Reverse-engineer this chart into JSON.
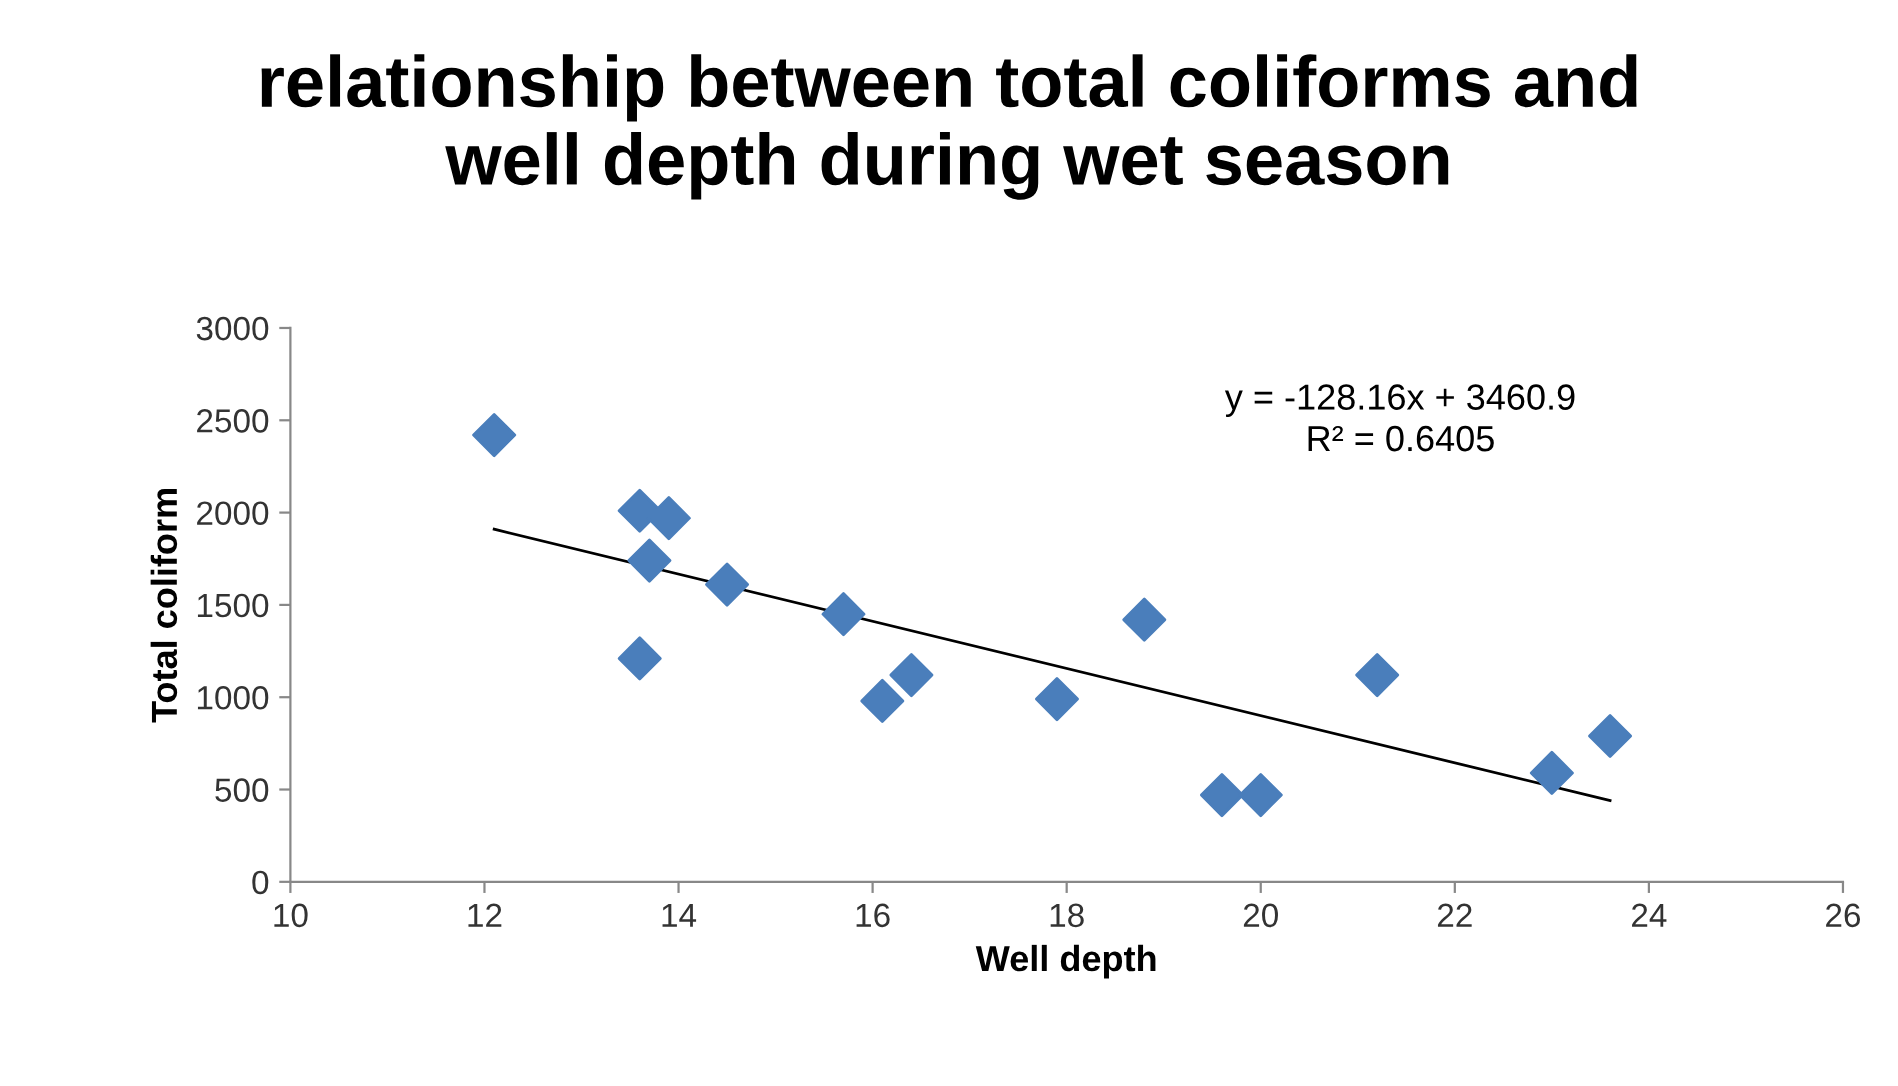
{
  "chart_data": {
    "type": "scatter",
    "title": "relationship between total coliforms and\nwell depth during wet season",
    "xlabel": "Well depth",
    "ylabel": "Total coliform",
    "annotations": [
      "y = -128.16x + 3460.9\nR² = 0.6405"
    ],
    "xlim": [
      10,
      26
    ],
    "xticks": [
      10,
      12,
      14,
      16,
      18,
      20,
      22,
      24,
      26
    ],
    "ylim": [
      0,
      3000
    ],
    "yticks": [
      0,
      500,
      1000,
      1500,
      2000,
      2500,
      3000
    ],
    "grid": false,
    "series": [
      {
        "marker": "diamond",
        "color": "#4a7ebb",
        "x": [
          12.1,
          13.6,
          13.9,
          13.7,
          13.6,
          14.5,
          15.7,
          16.1,
          16.4,
          17.9,
          18.8,
          19.6,
          20.0,
          21.2,
          23.0,
          23.6
        ],
        "values": [
          2420,
          2010,
          1970,
          1740,
          1210,
          1610,
          1450,
          980,
          1120,
          990,
          1420,
          470,
          470,
          1120,
          590,
          790
        ]
      },
      {
        "type": "line",
        "color": "#000000",
        "line_style": "solid",
        "x": [
          12.1,
          23.6
        ],
        "values": [
          1910,
          440
        ]
      }
    ]
  }
}
